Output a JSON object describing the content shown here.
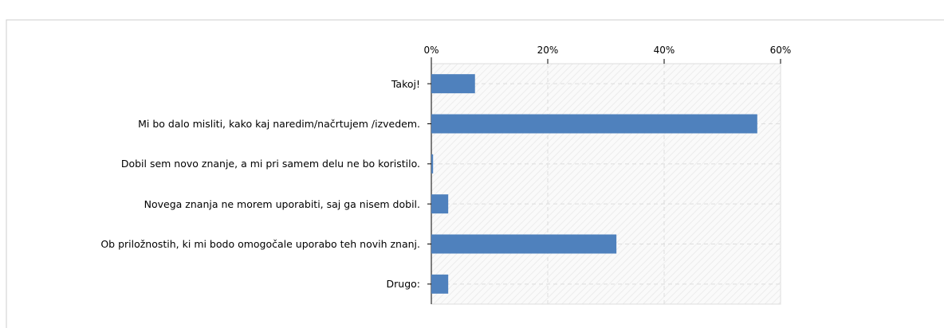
{
  "chart_data": {
    "type": "hbar",
    "categories": [
      "Takoj!",
      "Mi bo dalo misliti, kako kaj naredim/načrtujem /izvedem.",
      "Dobil sem novo znanje, a mi pri samem delu ne bo koristilo.",
      "Novega znanja ne morem uporabiti, saj ga nisem dobil.",
      "Ob priložnostih, ki mi bodo omogočale uporabo teh novih znanj.",
      "Drugo:"
    ],
    "values": [
      7.5,
      56,
      0.3,
      2.9,
      31.8,
      2.9
    ],
    "color": "#4f81bd",
    "xlim": [
      0,
      60
    ],
    "xticks": [
      {
        "value": 0,
        "label": "0%"
      },
      {
        "value": 20,
        "label": "20%"
      },
      {
        "value": 40,
        "label": "40%"
      },
      {
        "value": 60,
        "label": "60%"
      }
    ],
    "grid": true
  }
}
